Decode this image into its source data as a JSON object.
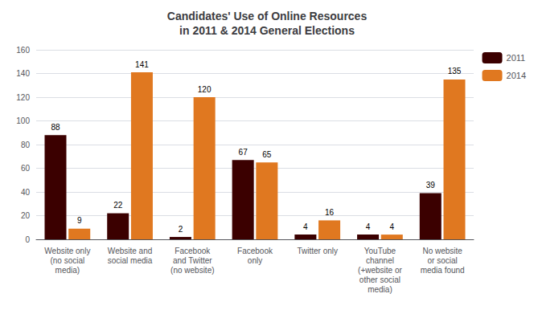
{
  "chart_data": {
    "type": "bar",
    "title": "Candidates' Use of Online Resources\nin 2011 & 2014 General Elections",
    "categories": [
      "Website only\n(no social\nmedia)",
      "Website and\nsocial media",
      "Facebook\nand Twitter\n(no website)",
      "Facebook\nonly",
      "Twitter only",
      "YouTube\nchannel\n(+website or\nother social\nmedia)",
      "No website\nor social\nmedia found"
    ],
    "series": [
      {
        "name": "2011",
        "color": "#3B0000",
        "values": [
          88,
          22,
          2,
          67,
          4,
          4,
          39
        ]
      },
      {
        "name": "2014",
        "color": "#E07820",
        "values": [
          9,
          141,
          120,
          65,
          16,
          4,
          135
        ]
      }
    ],
    "ylim": [
      0,
      160
    ],
    "yticks": [
      0,
      20,
      40,
      60,
      80,
      100,
      120,
      140,
      160
    ],
    "grid": true,
    "legend": "upper right",
    "data_labels": true
  }
}
